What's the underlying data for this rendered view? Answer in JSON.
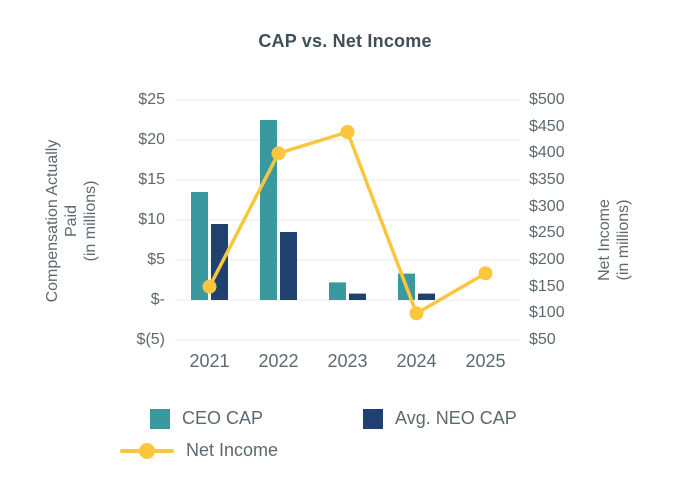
{
  "title": "CAP vs. Net Income",
  "colors": {
    "ceo_cap": "#3a999f",
    "neo_cap": "#20406f",
    "net_income": "#f9c63d",
    "grid": "#e8eaeb",
    "axis_text": "#5d6970",
    "title_text": "#3e4f58",
    "background": "#ffffff"
  },
  "left_axis": {
    "title_lines": [
      "Compensation Actually",
      "Paid",
      "(in millions)"
    ],
    "ticks": [
      "$25",
      "$20",
      "$15",
      "$10",
      "$5",
      "$-",
      "$(5)"
    ]
  },
  "right_axis": {
    "title_lines": [
      "Net Income",
      "(in millions)"
    ],
    "ticks": [
      "$500",
      "$450",
      "$400",
      "$350",
      "$300",
      "$250",
      "$200",
      "$150",
      "$100",
      "$50"
    ]
  },
  "x_axis": {
    "categories": [
      "2021",
      "2022",
      "2023",
      "2024",
      "2025"
    ]
  },
  "legend": [
    {
      "label": "CEO CAP",
      "type": "square",
      "color": "#3a999f"
    },
    {
      "label": "Avg. NEO CAP",
      "type": "square",
      "color": "#20406f"
    },
    {
      "label": "Net Income",
      "type": "line-marker",
      "color": "#f9c63d"
    }
  ],
  "chart_data": {
    "type": "bar+line",
    "title": "CAP vs. Net Income",
    "categories": [
      "2021",
      "2022",
      "2023",
      "2024",
      "2025"
    ],
    "series": [
      {
        "name": "CEO CAP",
        "type": "bar",
        "axis": "left",
        "color": "#3a999f",
        "values": [
          13.5,
          22.5,
          2.2,
          3.3,
          null
        ]
      },
      {
        "name": "Avg. NEO CAP",
        "type": "bar",
        "axis": "left",
        "color": "#20406f",
        "values": [
          9.5,
          8.5,
          0.8,
          0.8,
          null
        ]
      },
      {
        "name": "Net Income",
        "type": "line",
        "axis": "right",
        "color": "#f9c63d",
        "values": [
          150,
          400,
          440,
          100,
          175
        ]
      }
    ],
    "left_ylabel": "Compensation Actually Paid (in millions)",
    "right_ylabel": "Net Income (in millions)",
    "left_ylim": [
      -5,
      25
    ],
    "right_ylim": [
      50,
      500
    ],
    "grid": true,
    "legend_position": "bottom"
  }
}
